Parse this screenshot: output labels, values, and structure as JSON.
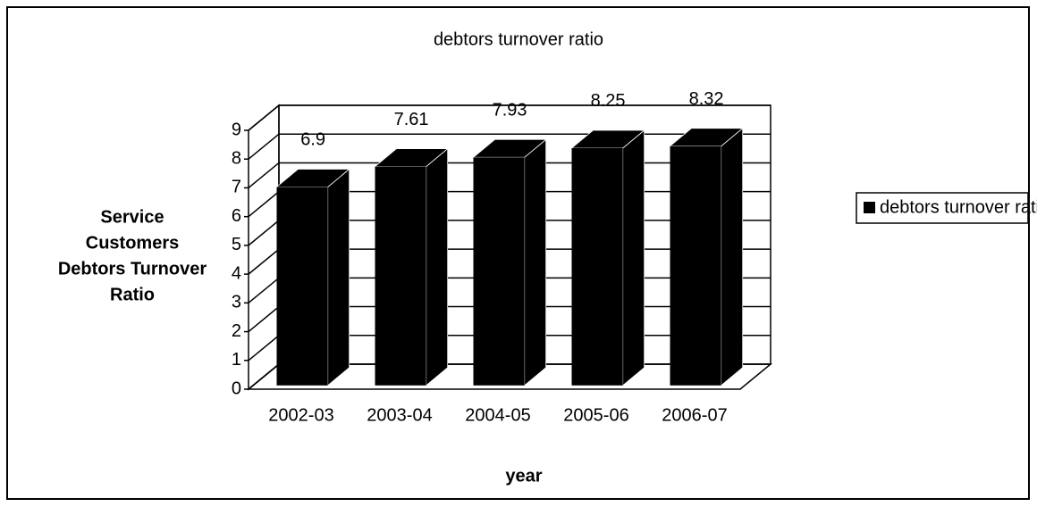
{
  "chart_data": {
    "type": "bar3d",
    "title": "debtors turnover ratio",
    "y_label": [
      "Service",
      "Customers",
      "Debtors Turnover",
      "Ratio"
    ],
    "x_label": "year",
    "categories": [
      "2002-03",
      "2003-04",
      "2004-05",
      "2005-06",
      "2006-07"
    ],
    "series": [
      {
        "name": "debtors turnover ratio",
        "color": "#000000",
        "values": [
          6.9,
          7.61,
          7.93,
          8.25,
          8.32
        ]
      }
    ],
    "ylim": [
      0,
      9
    ],
    "yticks": [
      0,
      1,
      2,
      3,
      4,
      5,
      6,
      7,
      8,
      9
    ],
    "grid": true,
    "legend": "right"
  }
}
